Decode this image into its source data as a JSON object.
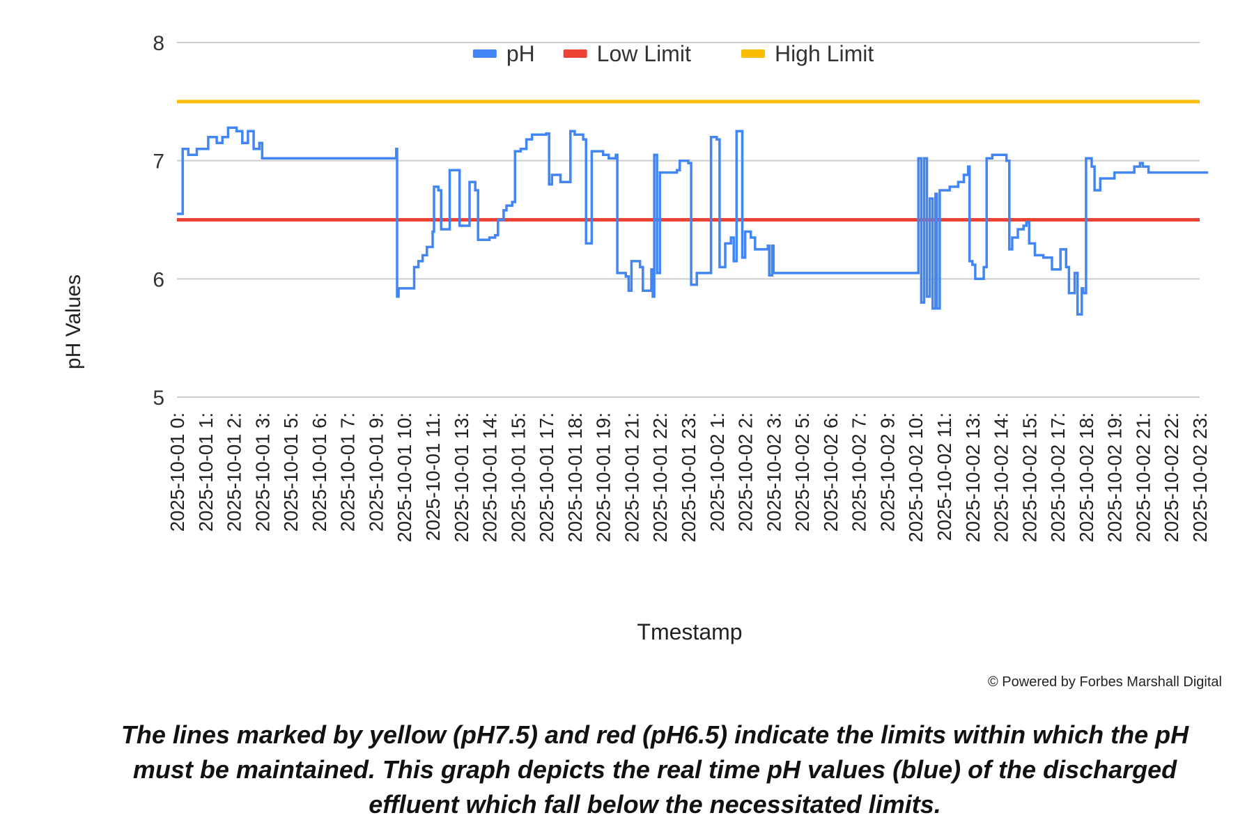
{
  "chart_data": {
    "type": "line",
    "ylabel": "pH Values",
    "xlabel": "Tmestamp",
    "ylim": [
      5,
      8
    ],
    "yticks": [
      5,
      6,
      7,
      8
    ],
    "grid": true,
    "legend_position": "top-center",
    "categories": [
      "2025-10-01 0:",
      "2025-10-01 1:",
      "2025-10-01 2:",
      "2025-10-01 3:",
      "2025-10-01 5:",
      "2025-10-01 6:",
      "2025-10-01 7:",
      "2025-10-01 9:",
      "2025-10-01 10:",
      "2025-10-01 11:",
      "2025-10-01 13:",
      "2025-10-01 14:",
      "2025-10-01 15:",
      "2025-10-01 17:",
      "2025-10-01 18:",
      "2025-10-01 19:",
      "2025-10-01 21:",
      "2025-10-01 22:",
      "2025-10-01 23:",
      "2025-10-02 1:",
      "2025-10-02 2:",
      "2025-10-02 3:",
      "2025-10-02 5:",
      "2025-10-02 6:",
      "2025-10-02 7:",
      "2025-10-02 9:",
      "2025-10-02 10:",
      "2025-10-02 11:",
      "2025-10-02 13:",
      "2025-10-02 14:",
      "2025-10-02 15:",
      "2025-10-02 17:",
      "2025-10-02 18:",
      "2025-10-02 19:",
      "2025-10-02 21:",
      "2025-10-02 22:",
      "2025-10-02 23:"
    ],
    "series": [
      {
        "name": "pH",
        "color": "#4285f4",
        "points": [
          [
            0.0,
            6.55
          ],
          [
            0.15,
            6.55
          ],
          [
            0.2,
            7.1
          ],
          [
            0.4,
            7.05
          ],
          [
            0.7,
            7.1
          ],
          [
            1.0,
            7.1
          ],
          [
            1.1,
            7.2
          ],
          [
            1.4,
            7.15
          ],
          [
            1.6,
            7.2
          ],
          [
            1.8,
            7.28
          ],
          [
            2.1,
            7.25
          ],
          [
            2.3,
            7.15
          ],
          [
            2.5,
            7.25
          ],
          [
            2.7,
            7.1
          ],
          [
            2.9,
            7.15
          ],
          [
            3.0,
            7.02
          ],
          [
            3.5,
            7.02
          ],
          [
            5.0,
            7.02
          ],
          [
            6.0,
            7.02
          ],
          [
            7.0,
            7.02
          ],
          [
            7.7,
            7.02
          ],
          [
            7.72,
            7.1
          ],
          [
            7.75,
            5.85
          ],
          [
            7.8,
            5.92
          ],
          [
            8.3,
            5.92
          ],
          [
            8.35,
            6.1
          ],
          [
            8.5,
            6.15
          ],
          [
            8.65,
            6.2
          ],
          [
            8.8,
            6.27
          ],
          [
            9.0,
            6.4
          ],
          [
            9.05,
            6.78
          ],
          [
            9.2,
            6.75
          ],
          [
            9.3,
            6.42
          ],
          [
            9.5,
            6.42
          ],
          [
            9.6,
            6.92
          ],
          [
            9.9,
            6.92
          ],
          [
            9.95,
            6.45
          ],
          [
            10.2,
            6.45
          ],
          [
            10.3,
            6.82
          ],
          [
            10.5,
            6.75
          ],
          [
            10.6,
            6.33
          ],
          [
            11.0,
            6.35
          ],
          [
            11.2,
            6.37
          ],
          [
            11.3,
            6.5
          ],
          [
            11.5,
            6.58
          ],
          [
            11.6,
            6.62
          ],
          [
            11.8,
            6.65
          ],
          [
            11.9,
            7.08
          ],
          [
            12.1,
            7.1
          ],
          [
            12.3,
            7.18
          ],
          [
            12.5,
            7.22
          ],
          [
            12.7,
            7.22
          ],
          [
            13.0,
            7.23
          ],
          [
            13.1,
            6.8
          ],
          [
            13.2,
            6.88
          ],
          [
            13.5,
            6.82
          ],
          [
            13.8,
            6.82
          ],
          [
            13.85,
            7.25
          ],
          [
            14.0,
            7.22
          ],
          [
            14.3,
            7.18
          ],
          [
            14.4,
            6.3
          ],
          [
            14.5,
            6.3
          ],
          [
            14.6,
            7.08
          ],
          [
            14.8,
            7.08
          ],
          [
            15.0,
            7.05
          ],
          [
            15.2,
            7.02
          ],
          [
            15.4,
            7.02
          ],
          [
            15.45,
            7.05
          ],
          [
            15.5,
            6.05
          ],
          [
            15.7,
            6.05
          ],
          [
            15.8,
            6.02
          ],
          [
            15.9,
            5.9
          ],
          [
            16.0,
            6.15
          ],
          [
            16.3,
            6.1
          ],
          [
            16.4,
            5.9
          ],
          [
            16.6,
            5.9
          ],
          [
            16.7,
            6.08
          ],
          [
            16.75,
            5.85
          ],
          [
            16.8,
            7.05
          ],
          [
            16.9,
            6.05
          ],
          [
            17.0,
            6.9
          ],
          [
            17.3,
            6.9
          ],
          [
            17.6,
            6.92
          ],
          [
            17.7,
            7.0
          ],
          [
            18.0,
            6.98
          ],
          [
            18.1,
            5.95
          ],
          [
            18.3,
            6.05
          ],
          [
            18.6,
            6.05
          ],
          [
            18.8,
            7.2
          ],
          [
            19.0,
            7.18
          ],
          [
            19.1,
            6.1
          ],
          [
            19.3,
            6.3
          ],
          [
            19.5,
            6.35
          ],
          [
            19.6,
            6.15
          ],
          [
            19.7,
            7.25
          ],
          [
            19.85,
            7.25
          ],
          [
            19.9,
            6.18
          ],
          [
            20.0,
            6.4
          ],
          [
            20.2,
            6.35
          ],
          [
            20.35,
            6.25
          ],
          [
            20.6,
            6.25
          ],
          [
            20.8,
            6.28
          ],
          [
            20.85,
            6.03
          ],
          [
            20.95,
            6.28
          ],
          [
            21.0,
            6.05
          ],
          [
            21.5,
            6.05
          ],
          [
            22.5,
            6.05
          ],
          [
            23.0,
            6.05
          ],
          [
            24.0,
            6.05
          ],
          [
            25.0,
            6.05
          ],
          [
            26.0,
            6.05
          ],
          [
            26.1,
            7.02
          ],
          [
            26.2,
            5.8
          ],
          [
            26.3,
            7.02
          ],
          [
            26.4,
            5.85
          ],
          [
            26.5,
            6.68
          ],
          [
            26.6,
            5.75
          ],
          [
            26.7,
            6.72
          ],
          [
            26.75,
            5.75
          ],
          [
            26.85,
            6.75
          ],
          [
            27.2,
            6.78
          ],
          [
            27.5,
            6.82
          ],
          [
            27.7,
            6.88
          ],
          [
            27.85,
            6.95
          ],
          [
            27.9,
            6.15
          ],
          [
            28.0,
            6.12
          ],
          [
            28.1,
            6.0
          ],
          [
            28.3,
            6.0
          ],
          [
            28.4,
            6.1
          ],
          [
            28.5,
            7.02
          ],
          [
            28.7,
            7.05
          ],
          [
            29.0,
            7.05
          ],
          [
            29.2,
            7.0
          ],
          [
            29.3,
            6.25
          ],
          [
            29.4,
            6.35
          ],
          [
            29.6,
            6.42
          ],
          [
            29.8,
            6.45
          ],
          [
            29.9,
            6.48
          ],
          [
            30.0,
            6.3
          ],
          [
            30.2,
            6.2
          ],
          [
            30.5,
            6.18
          ],
          [
            30.8,
            6.08
          ],
          [
            31.1,
            6.25
          ],
          [
            31.3,
            6.1
          ],
          [
            31.4,
            5.88
          ],
          [
            31.6,
            6.05
          ],
          [
            31.7,
            5.7
          ],
          [
            31.85,
            5.92
          ],
          [
            31.9,
            5.88
          ],
          [
            32.0,
            7.02
          ],
          [
            32.2,
            6.95
          ],
          [
            32.3,
            6.75
          ],
          [
            32.5,
            6.85
          ],
          [
            32.8,
            6.85
          ],
          [
            33.0,
            6.9
          ],
          [
            33.4,
            6.9
          ],
          [
            33.7,
            6.95
          ],
          [
            33.9,
            6.98
          ],
          [
            34.0,
            6.95
          ],
          [
            34.2,
            6.9
          ],
          [
            35.0,
            6.9
          ],
          [
            36.0,
            6.9
          ],
          [
            36.3,
            6.9
          ]
        ]
      },
      {
        "name": "Low Limit",
        "color": "#ea4335",
        "value": 6.5
      },
      {
        "name": "High Limit",
        "color": "#fbbc04",
        "value": 7.5
      }
    ]
  },
  "credit": "© Powered by Forbes Marshall Digital",
  "caption": "The lines marked by yellow (pH7.5) and red (pH6.5) indicate the limits within which the pH must be maintained. This graph depicts the real time pH values (blue) of the discharged effluent which fall below the necessitated limits."
}
